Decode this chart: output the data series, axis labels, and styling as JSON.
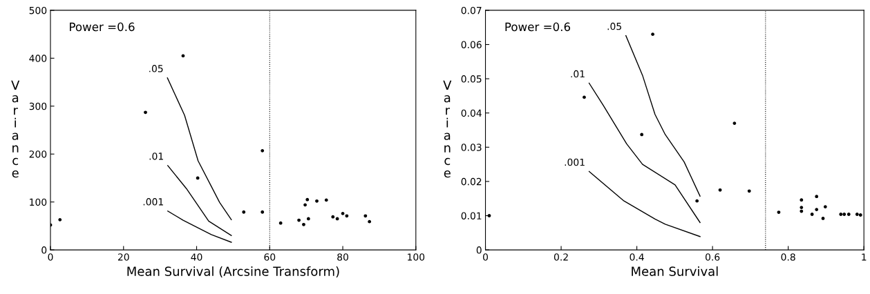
{
  "chart_data": [
    {
      "type": "scatter",
      "xlabel": "Mean Survival (Arcsine Transform)",
      "ylabel": "Variance",
      "annotations": [
        "Power =0.6"
      ],
      "xlim": [
        0,
        100
      ],
      "xticks": [
        0,
        20,
        40,
        60,
        80,
        100
      ],
      "ylim": [
        0,
        500
      ],
      "yticks": [
        0,
        100,
        200,
        300,
        400,
        500
      ],
      "grid": false,
      "legend": false,
      "marker": "circle",
      "ref_lines": [
        {
          "axis": "x",
          "value": 60,
          "color": "#000000",
          "line_style": "dotted"
        }
      ],
      "series": [
        {
          "color": "#000000",
          "x": [
            0,
            2.6,
            26,
            36.3,
            40.3,
            52.9,
            58,
            58,
            63,
            68,
            69.3,
            69.7,
            70.3,
            70.6,
            72.9,
            75.5,
            77.3,
            78.5,
            80,
            81.1,
            86.2,
            87.3
          ],
          "values": [
            52,
            63,
            287,
            405,
            150,
            79,
            207,
            79,
            56,
            62,
            53,
            94,
            105,
            65,
            102,
            104,
            69,
            65,
            76,
            71,
            71,
            59
          ]
        },
        {
          "type": "line",
          "name": ".05",
          "color": "#000000",
          "marker": "none",
          "x": [
            32,
            36.7,
            40.4,
            46.3,
            49.5
          ],
          "values": [
            359,
            281,
            186,
            99,
            63
          ]
        },
        {
          "type": "line",
          "name": ".01",
          "color": "#000000",
          "marker": "none",
          "x": [
            32.1,
            37.2,
            43.3,
            49.5
          ],
          "values": [
            176,
            128,
            60,
            30
          ]
        },
        {
          "type": "line",
          "name": ".001",
          "color": "#000000",
          "marker": "none",
          "x": [
            32.1,
            36.3,
            44,
            49.5
          ],
          "values": [
            81,
            62,
            32,
            16
          ]
        }
      ]
    },
    {
      "type": "scatter",
      "xlabel": "Mean Survival",
      "ylabel": "Variance",
      "annotations": [
        "Power =0.6"
      ],
      "xlim": [
        0,
        1
      ],
      "xticks": [
        0,
        0.2,
        0.4,
        0.6,
        0.8,
        1
      ],
      "ylim": [
        0,
        0.07
      ],
      "yticks": [
        0,
        0.01,
        0.02,
        0.03,
        0.04,
        0.05,
        0.06,
        0.07
      ],
      "grid": false,
      "legend": false,
      "marker": "circle",
      "ref_lines": [
        {
          "axis": "x",
          "value": 0.74,
          "color": "#000000",
          "line_style": "dotted"
        }
      ],
      "series": [
        {
          "color": "#000000",
          "x": [
            0.01,
            0.261,
            0.413,
            0.442,
            0.559,
            0.62,
            0.658,
            0.697,
            0.775,
            0.835,
            0.835,
            0.835,
            0.863,
            0.875,
            0.875,
            0.892,
            0.898,
            0.939,
            0.948,
            0.96,
            0.982,
            0.991
          ],
          "values": [
            0.01,
            0.0446,
            0.0337,
            0.063,
            0.0143,
            0.0175,
            0.037,
            0.0172,
            0.011,
            0.0146,
            0.0124,
            0.0113,
            0.0104,
            0.0156,
            0.0118,
            0.0092,
            0.0126,
            0.0104,
            0.0104,
            0.0104,
            0.0104,
            0.0102
          ]
        },
        {
          "type": "line",
          "name": ".05",
          "color": "#000000",
          "marker": "none",
          "x": [
            0.371,
            0.415,
            0.448,
            0.475,
            0.525,
            0.567
          ],
          "values": [
            0.0626,
            0.051,
            0.0396,
            0.0337,
            0.0257,
            0.0157
          ]
        },
        {
          "type": "line",
          "name": ".01",
          "color": "#000000",
          "marker": "none",
          "x": [
            0.274,
            0.311,
            0.373,
            0.415,
            0.501,
            0.567
          ],
          "values": [
            0.0487,
            0.0423,
            0.031,
            0.025,
            0.019,
            0.008
          ]
        },
        {
          "type": "line",
          "name": ".001",
          "color": "#000000",
          "marker": "none",
          "x": [
            0.274,
            0.366,
            0.448,
            0.475,
            0.567
          ],
          "values": [
            0.0229,
            0.0143,
            0.009,
            0.0075,
            0.0039
          ]
        }
      ]
    }
  ]
}
